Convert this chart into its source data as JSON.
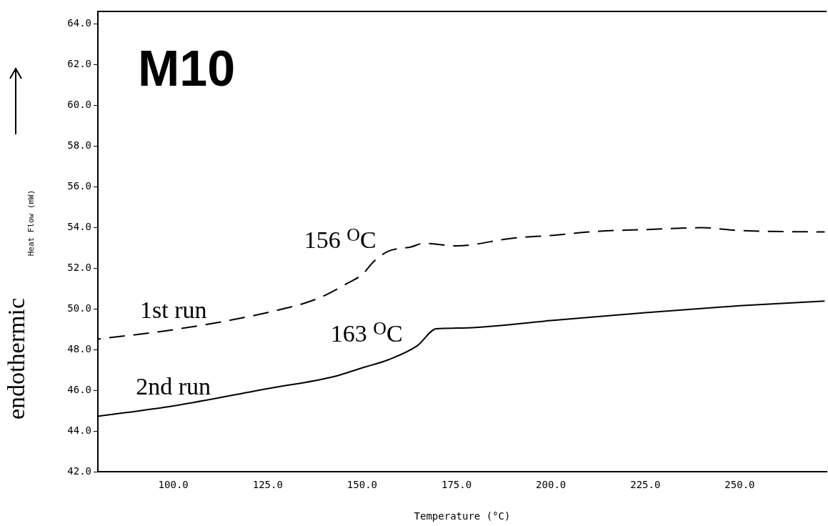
{
  "chart_data": {
    "type": "line",
    "title": "M10",
    "xlabel": "Temperature (°C)",
    "ylabel": "Heat Flow (mW)",
    "annotations": [
      "endothermic",
      {
        "text": "156 $^{O}$C",
        "x": 156,
        "y": 52.7
      },
      {
        "text": "163 $^{O}$C",
        "x": 163,
        "y": 48.1
      }
    ],
    "xlim": [
      80,
      273
    ],
    "ylim": [
      42,
      64.6
    ],
    "xticks": [
      {
        "value": 100,
        "label": "100.0"
      },
      {
        "value": 125,
        "label": "125.0"
      },
      {
        "value": 150,
        "label": "150.0"
      },
      {
        "value": 175,
        "label": "175.0"
      },
      {
        "value": 200,
        "label": "200.0"
      },
      {
        "value": 225,
        "label": "225.0"
      },
      {
        "value": 250,
        "label": "250.0"
      }
    ],
    "yticks": [
      {
        "value": 42,
        "label": "42.0"
      },
      {
        "value": 44,
        "label": "44.0"
      },
      {
        "value": 46,
        "label": "46.0"
      },
      {
        "value": 48,
        "label": "48.0"
      },
      {
        "value": 50,
        "label": "50.0"
      },
      {
        "value": 52,
        "label": "52.0"
      },
      {
        "value": 54,
        "label": "54.0"
      },
      {
        "value": 56,
        "label": "56.0"
      },
      {
        "value": 58,
        "label": "58.0"
      },
      {
        "value": 60,
        "label": "60.0"
      },
      {
        "value": 62,
        "label": "62.0"
      },
      {
        "value": 64,
        "label": "64.0"
      }
    ],
    "grid": false,
    "legend": false,
    "series": [
      {
        "name": "1st run",
        "color": "#000000",
        "line_style": "dashed",
        "x": [
          80,
          100,
          125,
          138.2,
          146.2,
          150,
          153.3,
          156.9,
          163,
          166.2,
          175,
          190,
          200,
          212.3,
          225,
          239.9,
          250,
          272.5
        ],
        "values": [
          48.51,
          48.97,
          49.82,
          50.5,
          51.26,
          51.68,
          52.36,
          52.82,
          53.04,
          53.21,
          53.09,
          53.47,
          53.6,
          53.8,
          53.89,
          53.98,
          53.84,
          53.77
        ]
      },
      {
        "name": "2nd run",
        "color": "#000000",
        "line_style": "solid",
        "x": [
          80,
          100,
          125,
          142.5,
          150,
          157,
          164.7,
          169.6,
          175,
          200,
          225,
          250,
          272.5
        ],
        "values": [
          44.72,
          45.23,
          46.08,
          46.67,
          47.1,
          47.5,
          48.2,
          49.02,
          49.05,
          49.42,
          49.81,
          50.15,
          50.38
        ]
      }
    ]
  }
}
